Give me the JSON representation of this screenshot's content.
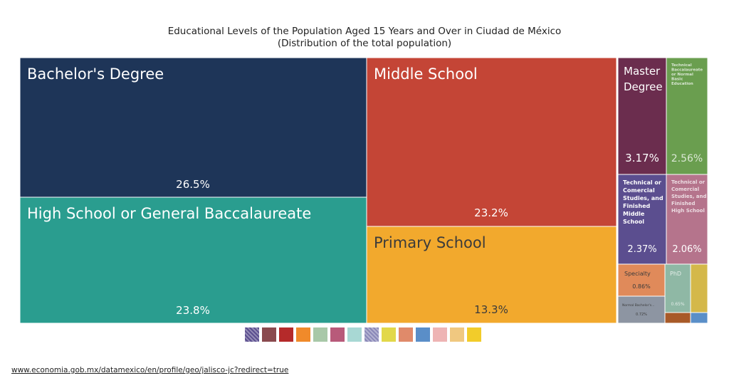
{
  "chart_data": {
    "type": "treemap",
    "title": "Educational Levels of the Population Aged 15 Years and Over in Ciudad de México",
    "subtitle": "(Distribution of the total population)",
    "segments": [
      {
        "label": "Bachelor's Degree",
        "value": 26.5,
        "value_text": "26.5%",
        "color": "#1e3558"
      },
      {
        "label": "High School or General Baccalaureate",
        "value": 23.8,
        "value_text": "23.8%",
        "color": "#2a9d8f"
      },
      {
        "label": "Middle School",
        "value": 23.2,
        "value_text": "23.2%",
        "color": "#c44536"
      },
      {
        "label": "Primary School",
        "value": 13.3,
        "value_text": "13.3%",
        "color": "#f2a92d"
      },
      {
        "label": "Master Degree",
        "value": 3.17,
        "value_text": "3.17%",
        "color": "#6b2d4e"
      },
      {
        "label": "Technical Baccalaureate or Normal Basic Education",
        "value": 2.56,
        "value_text": "2.56%",
        "color": "#6a9e4f"
      },
      {
        "label": "Technical or Comercial Studies, and Finished Middle School",
        "value": 2.37,
        "value_text": "2.37%",
        "color": "#5b4e8f"
      },
      {
        "label": "Technical or Comercial Studies, and Finished High School",
        "value": 2.06,
        "value_text": "2.06%",
        "color": "#b5748c"
      },
      {
        "label": "Specialty",
        "value": 0.86,
        "value_text": "0.86%",
        "color": "#e08a5a"
      },
      {
        "label": "PhD",
        "value": 0.65,
        "value_text": "0.65%",
        "color": "#8fb8a5"
      },
      {
        "label": "Normal Bachelor's...",
        "value": 0.72,
        "value_text": "0.72%",
        "color": "#8d95a2"
      },
      {
        "label": "",
        "value": 0.5,
        "value_text": "",
        "color": "#d4b84a"
      },
      {
        "label": "",
        "value": 0.2,
        "value_text": "",
        "color": "#a85a28"
      },
      {
        "label": "",
        "value": 0.15,
        "value_text": "",
        "color": "#5a8fc8"
      }
    ]
  },
  "legend": {
    "swatches": [
      {
        "color": "#5b4e8f",
        "hatched": true
      },
      {
        "color": "#8a4a4e",
        "hatched": false
      },
      {
        "color": "#b52a2a",
        "hatched": false
      },
      {
        "color": "#f08a2a",
        "hatched": false
      },
      {
        "color": "#a8c8a8",
        "hatched": false
      },
      {
        "color": "#b85a7a",
        "hatched": false
      },
      {
        "color": "#a8d8d4",
        "hatched": false
      },
      {
        "color": "#8a88b8",
        "hatched": true
      },
      {
        "color": "#e2d84a",
        "hatched": false
      },
      {
        "color": "#e08a6a",
        "hatched": false
      },
      {
        "color": "#5a8ec8",
        "hatched": false
      },
      {
        "color": "#eeb4b4",
        "hatched": false
      },
      {
        "color": "#f0c880",
        "hatched": false
      },
      {
        "color": "#f2cc2a",
        "hatched": false
      }
    ]
  },
  "footer": {
    "source_url": "www.economia.gob.mx/datamexico/en/profile/geo/jalisco-jc?redirect=true"
  }
}
